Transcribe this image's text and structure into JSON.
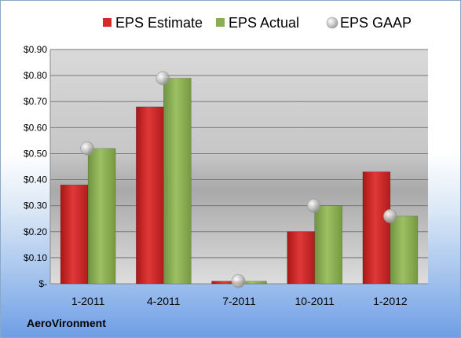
{
  "chart_data": {
    "type": "bar",
    "categories": [
      "1-2011",
      "4-2011",
      "7-2011",
      "10-2011",
      "1-2012"
    ],
    "series": [
      {
        "name": "EPS Estimate",
        "values": [
          0.38,
          0.68,
          0.01,
          0.2,
          0.43
        ],
        "color": "#d42a2a"
      },
      {
        "name": "EPS Actual",
        "values": [
          0.52,
          0.79,
          0.01,
          0.3,
          0.26
        ],
        "color": "#8aae52"
      }
    ],
    "overlay": {
      "name": "EPS GAAP",
      "type": "scatter",
      "values": [
        0.52,
        0.79,
        0.01,
        0.3,
        0.26
      ],
      "color": "#b8b8b8"
    },
    "y_ticks": [
      {
        "value": 0.9,
        "label": "$0.90"
      },
      {
        "value": 0.8,
        "label": "$0.80"
      },
      {
        "value": 0.7,
        "label": "$0.70"
      },
      {
        "value": 0.6,
        "label": "$0.60"
      },
      {
        "value": 0.5,
        "label": "$0.50"
      },
      {
        "value": 0.4,
        "label": "$0.40"
      },
      {
        "value": 0.3,
        "label": "$0.30"
      },
      {
        "value": 0.2,
        "label": "$0.20"
      },
      {
        "value": 0.1,
        "label": "$0.10"
      },
      {
        "value": 0.0,
        "label": "$-"
      }
    ],
    "ylim": [
      0,
      0.9
    ],
    "grid": true,
    "legend_position": "top",
    "title": "",
    "xlabel": "",
    "ylabel": ""
  },
  "company": "AeroVironment"
}
